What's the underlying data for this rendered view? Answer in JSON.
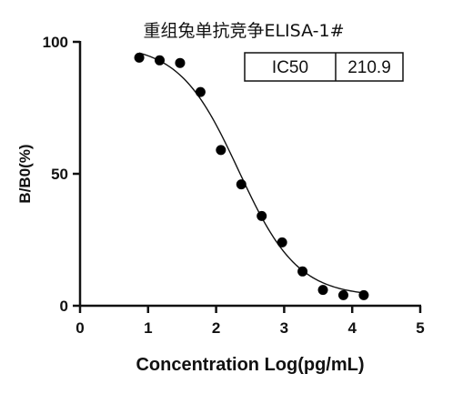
{
  "chart_data": {
    "type": "scatter",
    "title": "重组兔单抗竞争ELISA-1#",
    "xlabel": "Concentration Log(pg/mL)",
    "ylabel": "B/B0(%)",
    "xlim": [
      0,
      5
    ],
    "ylim": [
      0,
      100
    ],
    "x_ticks": [
      0,
      1,
      2,
      3,
      4,
      5
    ],
    "y_ticks": [
      0,
      50,
      100
    ],
    "x_tick_labels": [
      "0",
      "1",
      "2",
      "3",
      "4",
      "5"
    ],
    "y_tick_labels": [
      "0",
      "50",
      "100"
    ],
    "grid": false,
    "series": [
      {
        "points": [
          {
            "x": 0.87,
            "y": 94
          },
          {
            "x": 1.17,
            "y": 93
          },
          {
            "x": 1.47,
            "y": 92
          },
          {
            "x": 1.77,
            "y": 81
          },
          {
            "x": 2.07,
            "y": 59
          },
          {
            "x": 2.37,
            "y": 46
          },
          {
            "x": 2.67,
            "y": 34
          },
          {
            "x": 2.97,
            "y": 24
          },
          {
            "x": 3.27,
            "y": 13
          },
          {
            "x": 3.57,
            "y": 6
          },
          {
            "x": 3.87,
            "y": 4
          },
          {
            "x": 4.17,
            "y": 4
          }
        ]
      }
    ],
    "fit_curve": {
      "model": "four-parameter logistic",
      "top": 99,
      "bottom": 3.5,
      "log_ic50": 2.33,
      "hill_slope": 1.0,
      "x_range": [
        0.87,
        4.17
      ]
    },
    "annotation_table": {
      "label": "IC50",
      "value": "210.9",
      "position": "top-right"
    }
  }
}
